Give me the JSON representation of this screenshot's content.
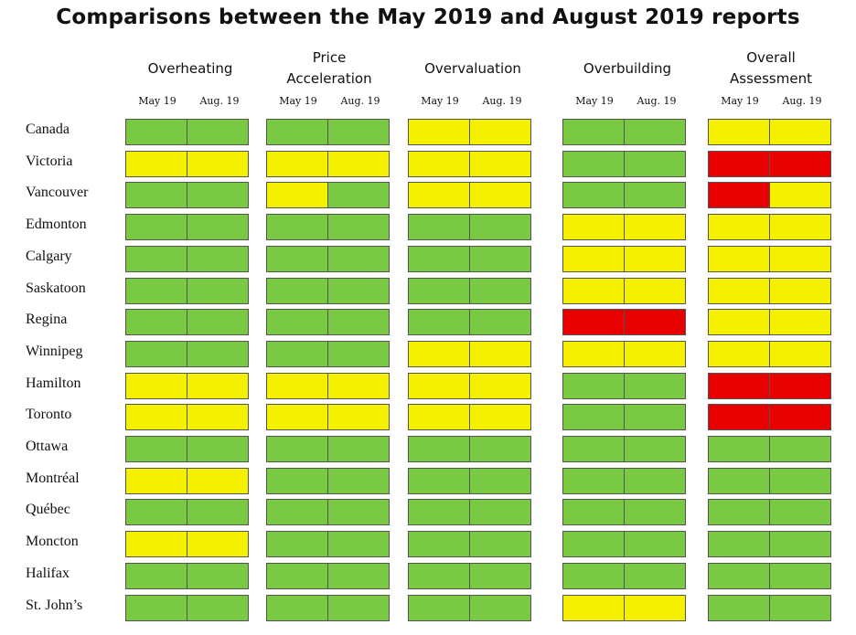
{
  "title": "Comparisons between the May 2019 and August 2019 reports",
  "colors": {
    "green": "#7ac943",
    "yellow": "#f5ef00",
    "red": "#e80000"
  },
  "periods": [
    "May 19",
    "Aug. 19"
  ],
  "chart_data": {
    "type": "table",
    "title": "Comparisons between the May 2019 and August 2019 reports",
    "columns": [
      "Overheating",
      "Price Acceleration",
      "Overvaluation",
      "Overbuilding",
      "Overall Assessment"
    ],
    "periods": [
      "May 19",
      "Aug. 19"
    ],
    "rows": [
      {
        "city": "Canada",
        "values": [
          [
            "green",
            "green"
          ],
          [
            "green",
            "green"
          ],
          [
            "yellow",
            "yellow"
          ],
          [
            "green",
            "green"
          ],
          [
            "yellow",
            "yellow"
          ]
        ]
      },
      {
        "city": "Victoria",
        "values": [
          [
            "yellow",
            "yellow"
          ],
          [
            "yellow",
            "yellow"
          ],
          [
            "yellow",
            "yellow"
          ],
          [
            "green",
            "green"
          ],
          [
            "red",
            "red"
          ]
        ]
      },
      {
        "city": "Vancouver",
        "values": [
          [
            "green",
            "green"
          ],
          [
            "yellow",
            "green"
          ],
          [
            "yellow",
            "yellow"
          ],
          [
            "green",
            "green"
          ],
          [
            "red",
            "yellow"
          ]
        ]
      },
      {
        "city": "Edmonton",
        "values": [
          [
            "green",
            "green"
          ],
          [
            "green",
            "green"
          ],
          [
            "green",
            "green"
          ],
          [
            "yellow",
            "yellow"
          ],
          [
            "yellow",
            "yellow"
          ]
        ]
      },
      {
        "city": "Calgary",
        "values": [
          [
            "green",
            "green"
          ],
          [
            "green",
            "green"
          ],
          [
            "green",
            "green"
          ],
          [
            "yellow",
            "yellow"
          ],
          [
            "yellow",
            "yellow"
          ]
        ]
      },
      {
        "city": "Saskatoon",
        "values": [
          [
            "green",
            "green"
          ],
          [
            "green",
            "green"
          ],
          [
            "green",
            "green"
          ],
          [
            "yellow",
            "yellow"
          ],
          [
            "yellow",
            "yellow"
          ]
        ]
      },
      {
        "city": "Regina",
        "values": [
          [
            "green",
            "green"
          ],
          [
            "green",
            "green"
          ],
          [
            "green",
            "green"
          ],
          [
            "red",
            "red"
          ],
          [
            "yellow",
            "yellow"
          ]
        ]
      },
      {
        "city": "Winnipeg",
        "values": [
          [
            "green",
            "green"
          ],
          [
            "green",
            "green"
          ],
          [
            "yellow",
            "yellow"
          ],
          [
            "yellow",
            "yellow"
          ],
          [
            "yellow",
            "yellow"
          ]
        ]
      },
      {
        "city": "Hamilton",
        "values": [
          [
            "yellow",
            "yellow"
          ],
          [
            "yellow",
            "yellow"
          ],
          [
            "yellow",
            "yellow"
          ],
          [
            "green",
            "green"
          ],
          [
            "red",
            "red"
          ]
        ]
      },
      {
        "city": "Toronto",
        "values": [
          [
            "yellow",
            "yellow"
          ],
          [
            "yellow",
            "yellow"
          ],
          [
            "yellow",
            "yellow"
          ],
          [
            "green",
            "green"
          ],
          [
            "red",
            "red"
          ]
        ]
      },
      {
        "city": "Ottawa",
        "values": [
          [
            "green",
            "green"
          ],
          [
            "green",
            "green"
          ],
          [
            "green",
            "green"
          ],
          [
            "green",
            "green"
          ],
          [
            "green",
            "green"
          ]
        ]
      },
      {
        "city": "Montréal",
        "values": [
          [
            "yellow",
            "yellow"
          ],
          [
            "green",
            "green"
          ],
          [
            "green",
            "green"
          ],
          [
            "green",
            "green"
          ],
          [
            "green",
            "green"
          ]
        ]
      },
      {
        "city": "Québec",
        "values": [
          [
            "green",
            "green"
          ],
          [
            "green",
            "green"
          ],
          [
            "green",
            "green"
          ],
          [
            "green",
            "green"
          ],
          [
            "green",
            "green"
          ]
        ]
      },
      {
        "city": "Moncton",
        "values": [
          [
            "yellow",
            "yellow"
          ],
          [
            "green",
            "green"
          ],
          [
            "green",
            "green"
          ],
          [
            "green",
            "green"
          ],
          [
            "green",
            "green"
          ]
        ]
      },
      {
        "city": "Halifax",
        "values": [
          [
            "green",
            "green"
          ],
          [
            "green",
            "green"
          ],
          [
            "green",
            "green"
          ],
          [
            "green",
            "green"
          ],
          [
            "green",
            "green"
          ]
        ]
      },
      {
        "city": "St. John’s",
        "values": [
          [
            "green",
            "green"
          ],
          [
            "green",
            "green"
          ],
          [
            "green",
            "green"
          ],
          [
            "yellow",
            "yellow"
          ],
          [
            "green",
            "green"
          ]
        ]
      }
    ]
  }
}
